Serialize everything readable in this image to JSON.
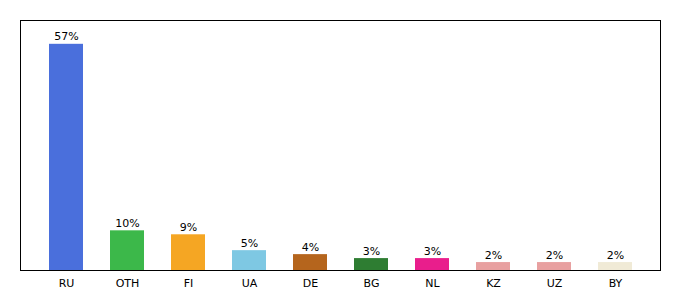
{
  "chart_data": {
    "type": "bar",
    "categories": [
      "RU",
      "OTH",
      "FI",
      "UA",
      "DE",
      "BG",
      "NL",
      "KZ",
      "UZ",
      "BY"
    ],
    "values": [
      57,
      10,
      9,
      5,
      4,
      3,
      3,
      2,
      2,
      2
    ],
    "value_labels": [
      "57%",
      "10%",
      "9%",
      "5%",
      "4%",
      "3%",
      "3%",
      "2%",
      "2%",
      "2%"
    ],
    "colors": [
      "#4a6fdc",
      "#3cb84a",
      "#f5a623",
      "#7ec8e3",
      "#b5651d",
      "#2e7d32",
      "#e91e8c",
      "#e8a0a0",
      "#e8a0a0",
      "#f0ead6"
    ],
    "ylim": [
      0,
      63
    ],
    "data_labels": true,
    "tick_labels": "x",
    "grid": false
  }
}
